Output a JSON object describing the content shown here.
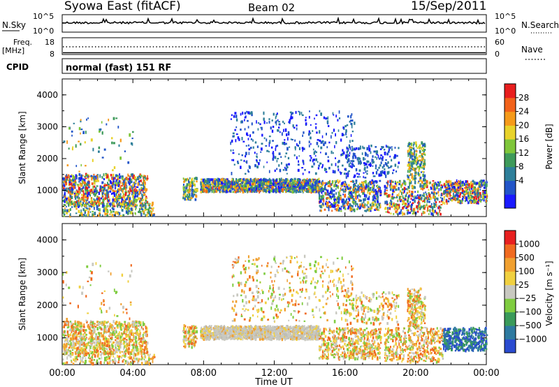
{
  "header": {
    "station": "Syowa East (fitACF)",
    "beam": "Beam 02",
    "date": "15/Sep/2011"
  },
  "noise_panel": {
    "left_label": "N.Sky",
    "left_ticks": [
      "10^5",
      "10^0"
    ],
    "right_label": "N.Search",
    "right_ticks": [
      "10^5",
      "10^0"
    ]
  },
  "freq_panel": {
    "left_label_1": "Freq.",
    "left_label_2": "[MHz]",
    "left_ticks": [
      "18",
      "8"
    ],
    "cpid_label": "CPID",
    "right_label": "Nave",
    "right_ticks": [
      "60",
      "0"
    ]
  },
  "cpid_text": "normal (fast) 151 RF",
  "chart_data": [
    {
      "type": "heatmap",
      "name": "power",
      "xlabel": "Time UT",
      "ylabel": "Slant Range [km]",
      "y_ticks": [
        "4000",
        "3000",
        "2000",
        "1000"
      ],
      "colorbar_label": "Power [dB]",
      "colorbar_ticks": [
        "28",
        "24",
        "20",
        "16",
        "12",
        "8",
        "4"
      ],
      "colors": [
        "#1a1aff",
        "#2255c8",
        "#2e7f9a",
        "#3e9a5a",
        "#7fc63a",
        "#e8d22a",
        "#f59a1a",
        "#f2621a",
        "#e81e1e"
      ],
      "clim": [
        0,
        32
      ],
      "ylim": [
        180,
        4500
      ],
      "xlim_hours": [
        0,
        24
      ]
    },
    {
      "type": "heatmap",
      "name": "velocity",
      "xlabel": "Time UT",
      "ylabel": "Slant Range [km]",
      "y_ticks": [
        "4000",
        "3000",
        "2000",
        "1000"
      ],
      "colorbar_label": "Velocity [m s⁻¹]",
      "colorbar_ticks": [
        "1000",
        "500",
        "100",
        "25",
        "−25",
        "−100",
        "−500",
        "−1000"
      ],
      "colors": [
        "#2a4bd0",
        "#2e7aa0",
        "#3a9a5a",
        "#7fcc40",
        "#c8c8c0",
        "#f0d040",
        "#f0a030",
        "#f06a20",
        "#e82020"
      ],
      "ylim": [
        180,
        4500
      ],
      "xlim_hours": [
        0,
        24
      ]
    }
  ],
  "x_axis": {
    "ticks": [
      "00:00",
      "04:00",
      "08:00",
      "12:00",
      "16:00",
      "20:00",
      "00:00"
    ],
    "label": "Time UT"
  }
}
